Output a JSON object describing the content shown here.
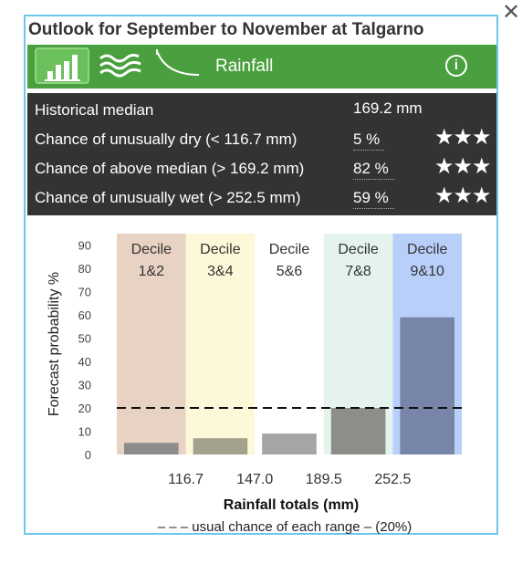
{
  "window": {
    "close_glyph": "✕",
    "title": "Outlook for September to November at Talgarno"
  },
  "toolbar": {
    "buttons": [
      {
        "name": "bar-chart-view-button",
        "icon": "bar-chart-icon",
        "active": true
      },
      {
        "name": "map-view-button",
        "icon": "wave-map-icon",
        "active": false
      },
      {
        "name": "curve-view-button",
        "icon": "exceedance-curve-icon",
        "active": false
      }
    ],
    "label": "Rainfall",
    "info_glyph": "i",
    "colors": {
      "bar": "#4aa03f",
      "active": "#6cc05c"
    }
  },
  "stats": {
    "median_label": "Historical median",
    "median_value": "169.2 mm",
    "rows": [
      {
        "label": "Chance of unusually dry (< 116.7 mm)",
        "value": "5 %",
        "stars": "★★★"
      },
      {
        "label": "Chance of above median (> 169.2 mm)",
        "value": "82 %",
        "stars": "★★★"
      },
      {
        "label": "Chance of unusually wet (> 252.5 mm)",
        "value": "59 %",
        "stars": "★★★"
      }
    ]
  },
  "chart_data": {
    "type": "bar",
    "categories": [
      "Decile 1&2",
      "Decile 3&4",
      "Decile 5&6",
      "Decile 7&8",
      "Decile 9&10"
    ],
    "category_lines": [
      [
        "Decile",
        "1&2"
      ],
      [
        "Decile",
        "3&4"
      ],
      [
        "Decile",
        "5&6"
      ],
      [
        "Decile",
        "7&8"
      ],
      [
        "Decile",
        "9&10"
      ]
    ],
    "values": [
      5,
      7,
      9,
      20,
      59
    ],
    "ylim": [
      0,
      95
    ],
    "yticks": [
      0,
      10,
      20,
      30,
      40,
      50,
      60,
      70,
      80,
      90
    ],
    "ylabel": "Forecast probability %",
    "xlabel": "Rainfall totals (mm)",
    "boundaries": [
      "116.7",
      "147.0",
      "189.5",
      "252.5"
    ],
    "reference_line": {
      "value": 20,
      "style": "dashed"
    },
    "legend": "– – – usual chance of each range – (20%)",
    "band_colors": [
      "#e8d2c3",
      "#fdf8d8",
      "#ffffff",
      "#e4f3ec",
      "#b8cffa"
    ],
    "bar_colors": [
      "#8c8c8c",
      "#a3a38d",
      "#a5a5a5",
      "#8c8e88",
      "#7785a8"
    ]
  }
}
